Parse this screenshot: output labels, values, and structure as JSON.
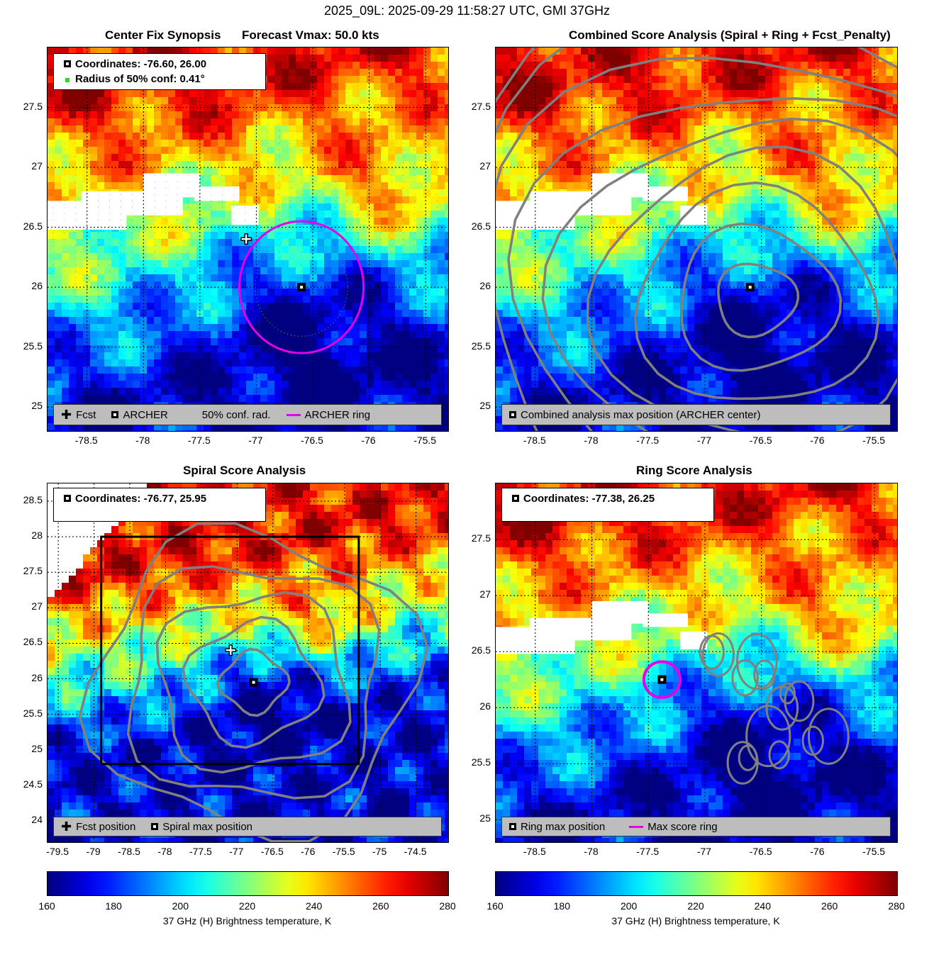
{
  "page_title": "2025_09L: 2025-09-29 11:58:27 UTC, GMI 37GHz",
  "colors": {
    "ring": "#e600e6",
    "contour": "#808080",
    "box": "#000000"
  },
  "icons": {
    "fcst": "plus-marker-icon",
    "archer": "square-marker-icon",
    "conf": "green-dot-icon"
  },
  "colorbar": {
    "min": 160,
    "max": 280,
    "ticks": [
      "160",
      "180",
      "200",
      "220",
      "240",
      "260",
      "280"
    ],
    "label": "37 GHz (H) Brightness temperature, K"
  },
  "panels": {
    "synopsis": {
      "title_left": "Center Fix Synopsis",
      "title_right": "Forecast Vmax: 50.0 kts",
      "info": {
        "coords": "Coordinates: -76.60, 26.00",
        "radius": "Radius of 50% conf: 0.41°"
      },
      "legend": {
        "fcst": "Fcst",
        "archer": "ARCHER",
        "conf": "50% conf. rad.",
        "ring": "ARCHER ring"
      }
    },
    "combined": {
      "title": "Combined Score Analysis (Spiral + Ring + Fcst_Penalty)",
      "legend": {
        "max": "Combined analysis max position (ARCHER center)"
      }
    },
    "spiral": {
      "title": "Spiral Score Analysis",
      "info": {
        "coords": "Coordinates: -76.77, 25.95"
      },
      "legend": {
        "fcst": "Fcst position",
        "max": "Spiral max position"
      }
    },
    "ring": {
      "title": "Ring Score Analysis",
      "info": {
        "coords": "Coordinates: -77.38, 26.25"
      },
      "legend": {
        "max": "Ring max position",
        "ring": "Max score ring"
      }
    }
  },
  "chart_data": [
    {
      "id": "synopsis",
      "type": "heatmap",
      "title": "Center Fix Synopsis    Forecast Vmax: 50.0 kts",
      "xlim": [
        -78.85,
        -75.3
      ],
      "ylim": [
        24.8,
        28.0
      ],
      "xticks": [
        "-78.5",
        "-78",
        "-77.5",
        "-77",
        "-76.5",
        "-76",
        "-75.5"
      ],
      "yticks": [
        "25",
        "25.5",
        "26",
        "26.5",
        "27",
        "27.5"
      ],
      "fcst": {
        "lon": -77.09,
        "lat": 26.4
      },
      "archer": {
        "lon": -76.6,
        "lat": 26.0
      },
      "ring_radius_deg": 0.55,
      "conf_radius_deg": 0.41,
      "dense_grid": true
    },
    {
      "id": "combined",
      "type": "heatmap",
      "title": "Combined Score Analysis (Spiral + Ring + Fcst_Penalty)",
      "xlim": [
        -78.85,
        -75.3
      ],
      "ylim": [
        24.8,
        28.0
      ],
      "xticks": [
        "-78.5",
        "-78",
        "-77.5",
        "-77",
        "-76.5",
        "-76",
        "-75.5"
      ],
      "yticks": [
        "25",
        "25.5",
        "26",
        "26.5",
        "27",
        "27.5"
      ],
      "max_position": {
        "lon": -76.6,
        "lat": 26.0
      },
      "contour_center": {
        "lon": -76.55,
        "lat": 25.9
      },
      "contour_levels": 9
    },
    {
      "id": "spiral",
      "type": "heatmap",
      "title": "Spiral Score Analysis",
      "xlim": [
        -79.65,
        -74.05
      ],
      "ylim": [
        23.7,
        28.75
      ],
      "xticks": [
        "-79.5",
        "-79",
        "-78.5",
        "-78",
        "-77.5",
        "-77",
        "-76.5",
        "-76",
        "-75.5",
        "-75",
        "-74.5"
      ],
      "yticks": [
        "24",
        "24.5",
        "25",
        "25.5",
        "26",
        "26.5",
        "27",
        "27.5",
        "28",
        "28.5"
      ],
      "fcst": {
        "lon": -77.09,
        "lat": 26.4
      },
      "max_position": {
        "lon": -76.77,
        "lat": 25.95
      },
      "box": {
        "lon": [
          -78.9,
          -75.3
        ],
        "lat": [
          24.8,
          28.0
        ]
      },
      "contour_levels": 5
    },
    {
      "id": "ring",
      "type": "heatmap",
      "title": "Ring Score Analysis",
      "xlim": [
        -78.85,
        -75.3
      ],
      "ylim": [
        24.8,
        28.0
      ],
      "xticks": [
        "-78.5",
        "-78",
        "-77.5",
        "-77",
        "-76.5",
        "-76",
        "-75.5"
      ],
      "yticks": [
        "25",
        "25.5",
        "26",
        "26.5",
        "27",
        "27.5"
      ],
      "max_position": {
        "lon": -77.38,
        "lat": 26.25
      },
      "ring_radius_deg": 0.16
    }
  ]
}
